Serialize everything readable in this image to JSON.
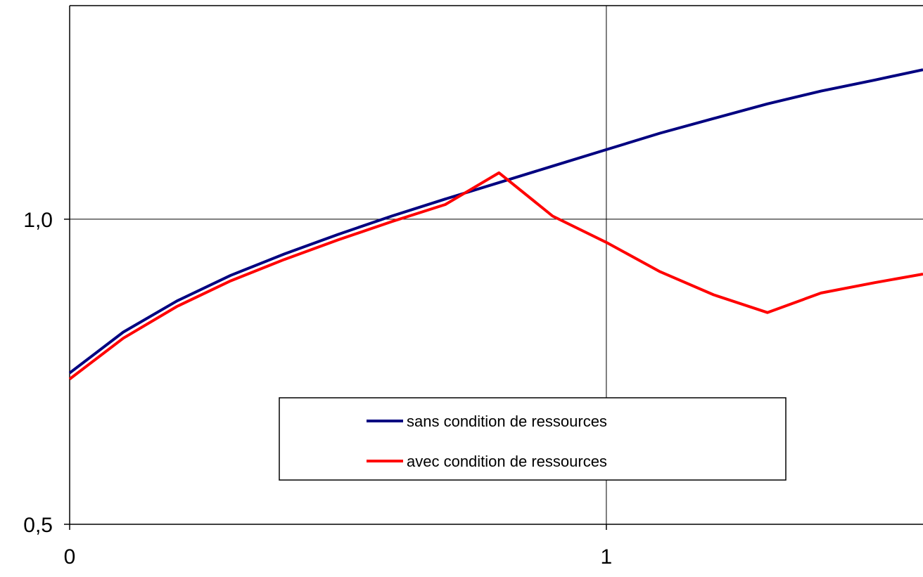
{
  "chart_data": {
    "type": "line",
    "title": "",
    "xlabel": "",
    "ylabel": "",
    "xlim": [
      0,
      1.59
    ],
    "ylim": [
      0.5,
      1.35
    ],
    "x_ticks": [
      {
        "value": 0,
        "label": "0"
      },
      {
        "value": 1,
        "label": "1"
      }
    ],
    "y_ticks": [
      {
        "value": 0.5,
        "label": "0,5"
      },
      {
        "value": 1.0,
        "label": "1,0"
      }
    ],
    "grid": true,
    "legend_position": "bottom-center",
    "series": [
      {
        "name": "sans condition de ressources",
        "color": "#000080",
        "x": [
          0,
          0.1,
          0.2,
          0.3,
          0.4,
          0.5,
          0.6,
          0.7,
          0.8,
          0.9,
          1.0,
          1.1,
          1.2,
          1.3,
          1.4,
          1.5,
          1.59
        ],
        "y": [
          0.748,
          0.815,
          0.866,
          0.908,
          0.943,
          0.975,
          1.005,
          1.033,
          1.06,
          1.087,
          1.114,
          1.141,
          1.165,
          1.189,
          1.21,
          1.228,
          1.245
        ]
      },
      {
        "name": "avec condition de ressources",
        "color": "#ff0000",
        "x": [
          0,
          0.1,
          0.2,
          0.3,
          0.4,
          0.5,
          0.6,
          0.7,
          0.8,
          0.9,
          1.0,
          1.1,
          1.2,
          1.3,
          1.4,
          1.5,
          1.59
        ],
        "y": [
          0.738,
          0.805,
          0.857,
          0.899,
          0.934,
          0.966,
          0.996,
          1.024,
          1.051,
          1.005,
          0.962,
          0.914,
          0.876,
          0.86,
          0.879,
          0.896,
          0.91
        ],
        "peak": {
          "x": 0.8,
          "y": 1.076
        },
        "trough": {
          "x": 1.3,
          "y": 0.847
        }
      }
    ]
  }
}
